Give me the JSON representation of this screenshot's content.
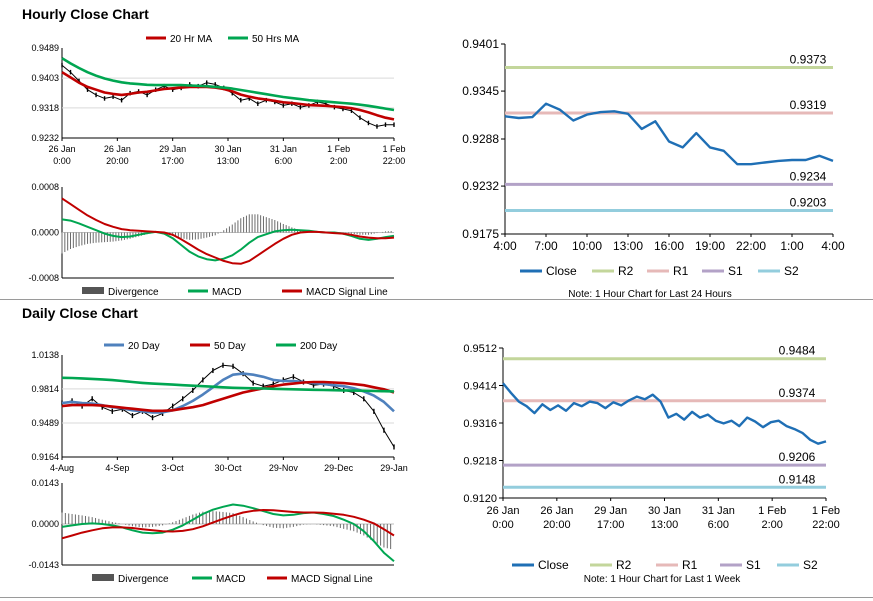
{
  "sections": {
    "hourly_title": "Hourly Close Chart",
    "daily_title": "Daily Close Chart"
  },
  "colors": {
    "ma1": "#c00000",
    "ma2": "#00a651",
    "ma3": "#4f81bd",
    "close": "#1f6fb5",
    "r2": "#c3d69b",
    "r1": "#e6b9b8",
    "s1": "#b3a2c7",
    "s2": "#93cddd",
    "divergence": "#555555"
  },
  "chart_data": [
    {
      "id": "hourly_price",
      "type": "line",
      "legend": [
        "20 Hr MA",
        "50 Hrs MA"
      ],
      "yticks": [
        "0.9489",
        "0.9403",
        "0.9318",
        "0.9232"
      ],
      "ylim": [
        0.9232,
        0.9489
      ],
      "xticks": [
        [
          "26 Jan",
          "0:00"
        ],
        [
          "26 Jan",
          "20:00"
        ],
        [
          "29 Jan",
          "17:00"
        ],
        [
          "30 Jan",
          "13:00"
        ],
        [
          "31 Jan",
          "6:00"
        ],
        [
          "1 Feb",
          "2:00"
        ],
        [
          "1 Feb",
          "22:00"
        ]
      ],
      "series": [
        {
          "name": "Price",
          "values": [
            0.944,
            0.942,
            0.9395,
            0.937,
            0.9355,
            0.9345,
            0.935,
            0.934,
            0.936,
            0.9365,
            0.9355,
            0.937,
            0.938,
            0.937,
            0.9375,
            0.9385,
            0.938,
            0.939,
            0.9385,
            0.9375,
            0.936,
            0.934,
            0.9345,
            0.933,
            0.934,
            0.9335,
            0.9325,
            0.933,
            0.932,
            0.9325,
            0.9335,
            0.933,
            0.932,
            0.9315,
            0.931,
            0.929,
            0.9275,
            0.9265,
            0.927,
            0.927
          ]
        },
        {
          "name": "20 Hr MA",
          "values": [
            0.942,
            0.9405,
            0.939,
            0.9378,
            0.937,
            0.9362,
            0.9358,
            0.9355,
            0.9358,
            0.9362,
            0.9364,
            0.9368,
            0.9372,
            0.9374,
            0.9376,
            0.9378,
            0.9378,
            0.9378,
            0.9376,
            0.9372,
            0.9365,
            0.9356,
            0.935,
            0.9345,
            0.9342,
            0.9338,
            0.9334,
            0.9332,
            0.9329,
            0.9326,
            0.9325,
            0.9324,
            0.9322,
            0.932,
            0.9317,
            0.9312,
            0.9305,
            0.9297,
            0.929,
            0.9285
          ]
        },
        {
          "name": "50 Hrs MA",
          "values": [
            0.946,
            0.9445,
            0.9432,
            0.942,
            0.941,
            0.9402,
            0.9396,
            0.9391,
            0.9388,
            0.9386,
            0.9384,
            0.9383,
            0.9383,
            0.9383,
            0.9383,
            0.9382,
            0.9381,
            0.938,
            0.9378,
            0.9376,
            0.9373,
            0.9369,
            0.9365,
            0.9361,
            0.9357,
            0.9353,
            0.9349,
            0.9346,
            0.9343,
            0.934,
            0.9338,
            0.9336,
            0.9334,
            0.9332,
            0.933,
            0.9327,
            0.9324,
            0.932,
            0.9316,
            0.9312
          ]
        }
      ]
    },
    {
      "id": "hourly_macd",
      "type": "line",
      "legend": [
        "Divergence",
        "MACD",
        "MACD Signal Line"
      ],
      "yticks": [
        "0.0008",
        "0.0000",
        "-0.0008"
      ],
      "ylim": [
        -0.0008,
        0.0008
      ],
      "series": [
        {
          "name": "MACD",
          "values": [
            0.00023,
            0.00021,
            0.00016,
            0.0001,
            4e-05,
            -2e-05,
            -6e-05,
            -8e-05,
            -7e-05,
            -4e-05,
            -1e-05,
            1e-05,
            -2e-05,
            -0.0001,
            -0.00022,
            -0.00034,
            -0.00042,
            -0.00047,
            -0.00049,
            -0.00046,
            -0.0004,
            -0.0003,
            -0.00018,
            -8e-05,
            -3e-05,
            2e-05,
            4e-05,
            5e-05,
            4e-05,
            3e-05,
            1e-05,
            0.0,
            0.0,
            -2e-05,
            -6e-05,
            -0.00011,
            -0.00013,
            -0.00011,
            -8e-05,
            -6e-05
          ]
        },
        {
          "name": "MACD Signal Line",
          "values": [
            0.0006,
            0.0005,
            0.0004,
            0.0003,
            0.00022,
            0.00015,
            0.0001,
            6e-05,
            4e-05,
            3e-05,
            2e-05,
            1e-05,
            0.0,
            -4e-05,
            -0.00012,
            -0.00021,
            -0.0003,
            -0.00038,
            -0.00044,
            -0.0005,
            -0.00054,
            -0.00055,
            -0.0005,
            -0.0004,
            -0.0003,
            -0.0002,
            -0.00011,
            -4e-05,
            0.0,
            1e-05,
            1e-05,
            0.0,
            -1e-05,
            -2e-05,
            -4e-05,
            -7e-05,
            -9e-05,
            -0.0001,
            -0.0001,
            -9e-05
          ]
        }
      ]
    },
    {
      "id": "hourly_close",
      "type": "line",
      "ylim": [
        0.9175,
        0.9401
      ],
      "yticks": [
        "0.9401",
        "0.9345",
        "0.9288",
        "0.9232",
        "0.9175"
      ],
      "xticks": [
        "4:00",
        "7:00",
        "10:00",
        "13:00",
        "16:00",
        "19:00",
        "22:00",
        "1:00",
        "4:00"
      ],
      "levels": [
        {
          "name": "R2",
          "value": 0.9373,
          "label": "0.9373"
        },
        {
          "name": "R1",
          "value": 0.9319,
          "label": "0.9319"
        },
        {
          "name": "S1",
          "value": 0.9234,
          "label": "0.9234"
        },
        {
          "name": "S2",
          "value": 0.9203,
          "label": "0.9203"
        }
      ],
      "series": [
        {
          "name": "Close",
          "x": [
            0,
            1,
            2,
            3,
            4,
            5,
            6,
            7,
            8,
            9,
            10,
            11,
            12,
            13,
            14,
            15,
            16,
            17,
            18,
            19,
            20,
            21,
            22,
            23,
            24
          ],
          "values": [
            0.9315,
            0.9313,
            0.9314,
            0.933,
            0.9323,
            0.931,
            0.9317,
            0.932,
            0.9321,
            0.9318,
            0.93,
            0.9309,
            0.9285,
            0.9278,
            0.9295,
            0.9278,
            0.9274,
            0.9258,
            0.9258,
            0.926,
            0.9262,
            0.9263,
            0.9263,
            0.9268,
            0.9262
          ]
        }
      ],
      "legend": [
        "Close",
        "R2",
        "R1",
        "S1",
        "S2"
      ],
      "note": "Note: 1 Hour Chart for Last 24 Hours"
    },
    {
      "id": "daily_price",
      "type": "line",
      "legend": [
        "20 Day",
        "50 Day",
        "200 Day"
      ],
      "yticks": [
        "1.0138",
        "0.9814",
        "0.9489",
        "0.9164"
      ],
      "ylim": [
        0.9164,
        1.0138
      ],
      "xticks": [
        "4-Aug",
        "4-Sep",
        "3-Oct",
        "30-Oct",
        "29-Nov",
        "29-Dec",
        "29-Jan"
      ],
      "series": [
        {
          "name": "Price",
          "values": [
            0.968,
            0.97,
            0.965,
            0.972,
            0.964,
            0.96,
            0.962,
            0.956,
            0.96,
            0.954,
            0.958,
            0.965,
            0.972,
            0.98,
            0.99,
            0.999,
            1.004,
            1.003,
            0.996,
            0.987,
            0.984,
            0.986,
            0.99,
            0.993,
            0.988,
            0.985,
            0.986,
            0.984,
            0.98,
            0.978,
            0.972,
            0.96,
            0.942,
            0.926
          ]
        },
        {
          "name": "20 Day",
          "values": [
            0.968,
            0.969,
            0.968,
            0.9675,
            0.966,
            0.964,
            0.963,
            0.961,
            0.96,
            0.959,
            0.959,
            0.961,
            0.965,
            0.97,
            0.976,
            0.983,
            0.99,
            0.995,
            0.996,
            0.995,
            0.993,
            0.99,
            0.989,
            0.989,
            0.988,
            0.987,
            0.986,
            0.985,
            0.984,
            0.982,
            0.979,
            0.975,
            0.969,
            0.96
          ]
        },
        {
          "name": "50 Day",
          "values": [
            0.965,
            0.966,
            0.966,
            0.966,
            0.9655,
            0.9645,
            0.9635,
            0.9625,
            0.9615,
            0.9605,
            0.9605,
            0.961,
            0.9625,
            0.964,
            0.966,
            0.969,
            0.972,
            0.975,
            0.978,
            0.98,
            0.982,
            0.984,
            0.9855,
            0.9865,
            0.9875,
            0.988,
            0.988,
            0.9875,
            0.987,
            0.986,
            0.985,
            0.983,
            0.981,
            0.978
          ]
        },
        {
          "name": "200 Day",
          "values": [
            0.992,
            0.9918,
            0.9915,
            0.991,
            0.9905,
            0.9898,
            0.989,
            0.988,
            0.9872,
            0.9865,
            0.986,
            0.9855,
            0.985,
            0.9845,
            0.984,
            0.9835,
            0.983,
            0.9825,
            0.9822,
            0.982,
            0.9818,
            0.9815,
            0.9812,
            0.981,
            0.9808,
            0.9806,
            0.9804,
            0.9802,
            0.98,
            0.9798,
            0.9796,
            0.9794,
            0.9792,
            0.979
          ]
        }
      ]
    },
    {
      "id": "daily_macd",
      "type": "line",
      "legend": [
        "Divergence",
        "MACD",
        "MACD Signal Line"
      ],
      "yticks": [
        "0.0143",
        "0.0000",
        "-0.0143"
      ],
      "ylim": [
        -0.0143,
        0.0143
      ],
      "series": [
        {
          "name": "MACD",
          "values": [
            -0.001,
            -0.0005,
            0.0,
            0.0002,
            0.0,
            -0.0005,
            -0.0012,
            -0.0022,
            -0.003,
            -0.0032,
            -0.003,
            -0.002,
            -0.0005,
            0.0015,
            0.0035,
            0.005,
            0.006,
            0.0068,
            0.0064,
            0.0055,
            0.0045,
            0.0035,
            0.003,
            0.0032,
            0.0038,
            0.004,
            0.0035,
            0.0028,
            0.0015,
            0.0,
            -0.0025,
            -0.006,
            -0.01,
            -0.013
          ]
        },
        {
          "name": "MACD Signal Line",
          "values": [
            -0.005,
            -0.004,
            -0.003,
            -0.0022,
            -0.0015,
            -0.0012,
            -0.0012,
            -0.0014,
            -0.0018,
            -0.0022,
            -0.0025,
            -0.0026,
            -0.0024,
            -0.0018,
            -0.0008,
            0.0005,
            0.0018,
            0.003,
            0.004,
            0.0046,
            0.0049,
            0.0048,
            0.0045,
            0.0042,
            0.004,
            0.004,
            0.0039,
            0.0036,
            0.0032,
            0.0025,
            0.0015,
            0.0002,
            -0.0018,
            -0.004
          ]
        }
      ]
    },
    {
      "id": "daily_close",
      "type": "line",
      "ylim": [
        0.912,
        0.9512
      ],
      "yticks": [
        "0.9512",
        "0.9414",
        "0.9316",
        "0.9218",
        "0.9120"
      ],
      "xticks": [
        [
          "26 Jan",
          "0:00"
        ],
        [
          "26 Jan",
          "20:00"
        ],
        [
          "29 Jan",
          "17:00"
        ],
        [
          "30 Jan",
          "13:00"
        ],
        [
          "31 Jan",
          "6:00"
        ],
        [
          "1 Feb",
          "2:00"
        ],
        [
          "1 Feb",
          "22:00"
        ]
      ],
      "levels": [
        {
          "name": "R2",
          "value": 0.9484,
          "label": "0.9484"
        },
        {
          "name": "R1",
          "value": 0.9374,
          "label": "0.9374"
        },
        {
          "name": "S1",
          "value": 0.9206,
          "label": "0.9206"
        },
        {
          "name": "S2",
          "value": 0.9148,
          "label": "0.9148"
        }
      ],
      "series": [
        {
          "name": "Close",
          "values": [
            0.942,
            0.9395,
            0.9372,
            0.936,
            0.9342,
            0.9365,
            0.935,
            0.9362,
            0.9348,
            0.9368,
            0.936,
            0.9372,
            0.9368,
            0.9355,
            0.937,
            0.9362,
            0.9375,
            0.9385,
            0.9378,
            0.939,
            0.9372,
            0.933,
            0.934,
            0.9325,
            0.9345,
            0.933,
            0.9338,
            0.9322,
            0.9315,
            0.9322,
            0.9308,
            0.933,
            0.932,
            0.9305,
            0.9318,
            0.9322,
            0.9308,
            0.93,
            0.929,
            0.9272,
            0.9262,
            0.9268
          ]
        }
      ],
      "legend": [
        "Close",
        "R2",
        "R1",
        "S1",
        "S2"
      ],
      "note": "Note: 1 Hour Chart for Last 1 Week"
    }
  ]
}
